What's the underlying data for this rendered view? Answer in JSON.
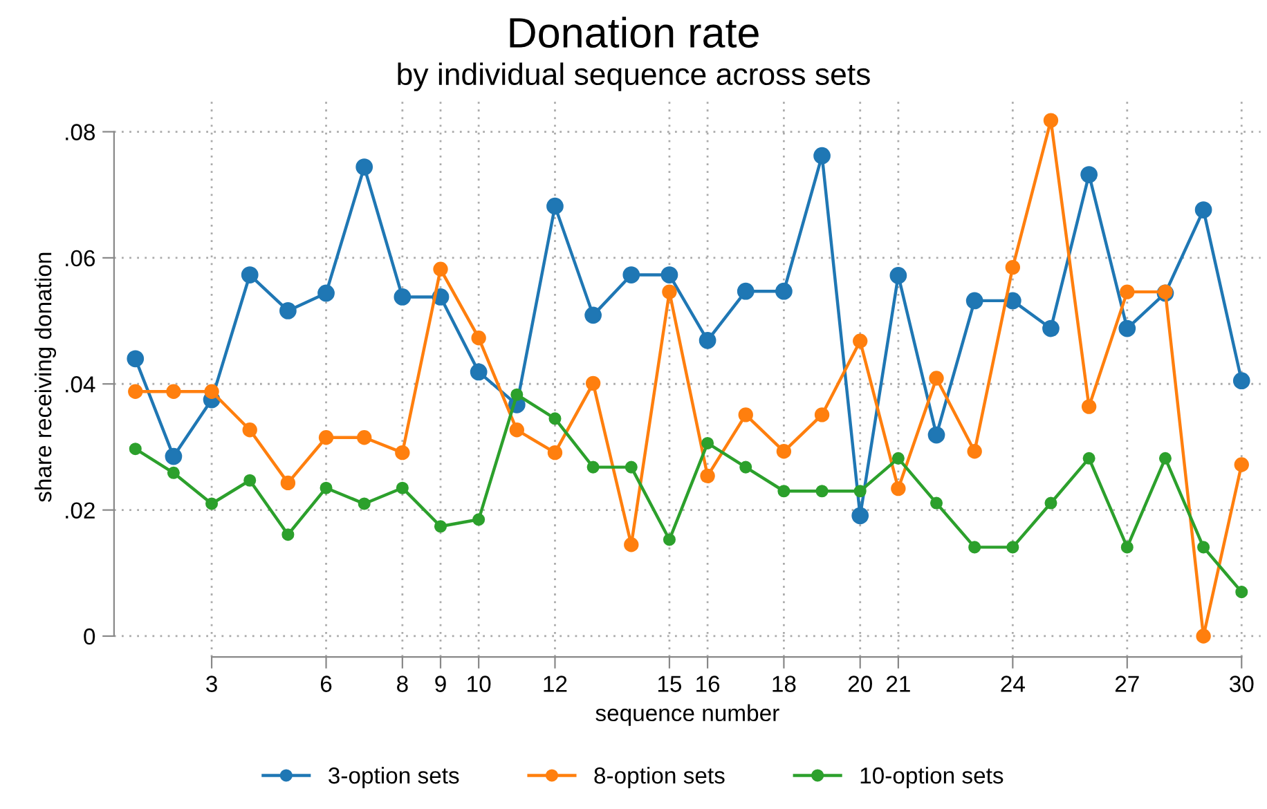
{
  "chart_data": {
    "type": "line",
    "title": "Donation rate",
    "subtitle": "by individual sequence across sets",
    "xlabel": "sequence number",
    "ylabel": "share receiving donation",
    "x": [
      1,
      2,
      3,
      4,
      5,
      6,
      7,
      8,
      9,
      10,
      11,
      12,
      13,
      14,
      15,
      16,
      17,
      18,
      19,
      20,
      21,
      22,
      23,
      24,
      25,
      26,
      27,
      28,
      29,
      30
    ],
    "series": [
      {
        "name": "3-option sets",
        "color": "#1f77b4",
        "values": [
          0.044,
          0.0285,
          0.0375,
          0.0573,
          0.0516,
          0.0544,
          0.0744,
          0.0538,
          0.0538,
          0.0419,
          0.0367,
          0.0682,
          0.0509,
          0.0573,
          0.0573,
          0.0469,
          0.0547,
          0.0547,
          0.0762,
          0.0191,
          0.0572,
          0.0319,
          0.0532,
          0.0532,
          0.0488,
          0.0732,
          0.0488,
          0.0544,
          0.0676,
          0.0405
        ]
      },
      {
        "name": "8-option sets",
        "color": "#ff7f0e",
        "values": [
          0.0388,
          0.0388,
          0.0388,
          0.0327,
          0.0243,
          0.0315,
          0.0315,
          0.0291,
          0.0582,
          0.0473,
          0.0327,
          0.0291,
          0.0401,
          0.0145,
          0.0546,
          0.0254,
          0.0351,
          0.0293,
          0.0351,
          0.0468,
          0.0234,
          0.0409,
          0.0293,
          0.0585,
          0.0818,
          0.0364,
          0.0546,
          0.0546,
          0.0,
          0.0272
        ]
      },
      {
        "name": "10-option sets",
        "color": "#2ca02c",
        "values": [
          0.0297,
          0.0259,
          0.021,
          0.0247,
          0.0161,
          0.0235,
          0.021,
          0.0235,
          0.0174,
          0.0185,
          0.0383,
          0.0345,
          0.0268,
          0.0268,
          0.0153,
          0.0306,
          0.0268,
          0.023,
          0.023,
          0.023,
          0.0282,
          0.0211,
          0.0141,
          0.0141,
          0.0211,
          0.0282,
          0.0141,
          0.0282,
          0.0141,
          0.007
        ]
      }
    ],
    "xlim": [
      0.44,
      30.5
    ],
    "xticks": [
      3,
      6,
      8,
      9,
      10,
      12,
      15,
      16,
      18,
      20,
      21,
      24,
      27,
      30
    ],
    "ylim": [
      -0.0033,
      0.0855
    ],
    "yticks": [
      0,
      {
        "value": 0.02,
        "label": ".02"
      },
      {
        "value": 0.04,
        "label": ".04"
      },
      {
        "value": 0.06,
        "label": ".06"
      },
      {
        "value": 0.08,
        "label": ".08"
      }
    ],
    "grid": true,
    "legend": "bottom",
    "marker": "circle",
    "line_style": "solid"
  }
}
